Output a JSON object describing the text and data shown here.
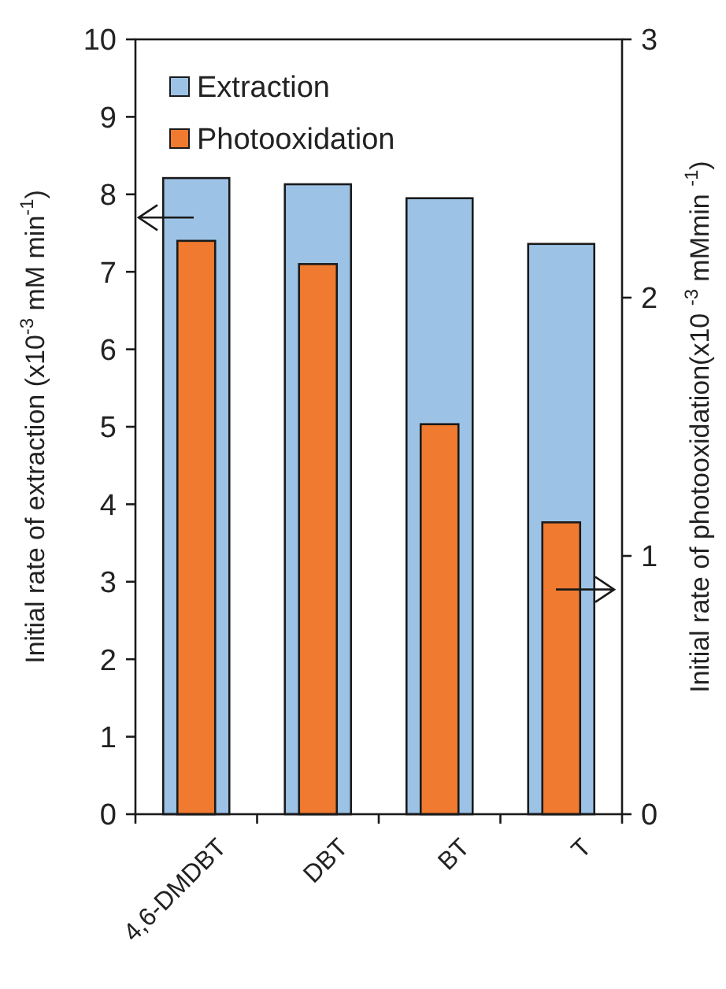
{
  "chart_data": {
    "type": "bar",
    "categories": [
      "4,6-DMDBT",
      "DBT",
      "BT",
      "T"
    ],
    "series": [
      {
        "name": "Extraction",
        "color": "#9cc3e6",
        "values": [
          8.21,
          8.13,
          7.95,
          7.36
        ]
      },
      {
        "name": "Photooxidation",
        "color": "#f07a2f",
        "values": [
          2.22,
          2.13,
          1.51,
          1.13
        ],
        "axis": "y2"
      }
    ],
    "ylabel": "Initial rate of extraction (x10$^{-3}$ mM min$^{-1}$)",
    "y2label": "Initial rate of photooxidation(x10 $^{-3}$ mMmin $^{-1}$)",
    "ylim": [
      0,
      10
    ],
    "yticks": [
      0,
      1,
      2,
      3,
      4,
      5,
      6,
      7,
      8,
      9,
      10
    ],
    "y2lim": [
      0,
      3
    ],
    "y2ticks": [
      0,
      1,
      2,
      3
    ],
    "legend": "top left",
    "grid": false
  }
}
